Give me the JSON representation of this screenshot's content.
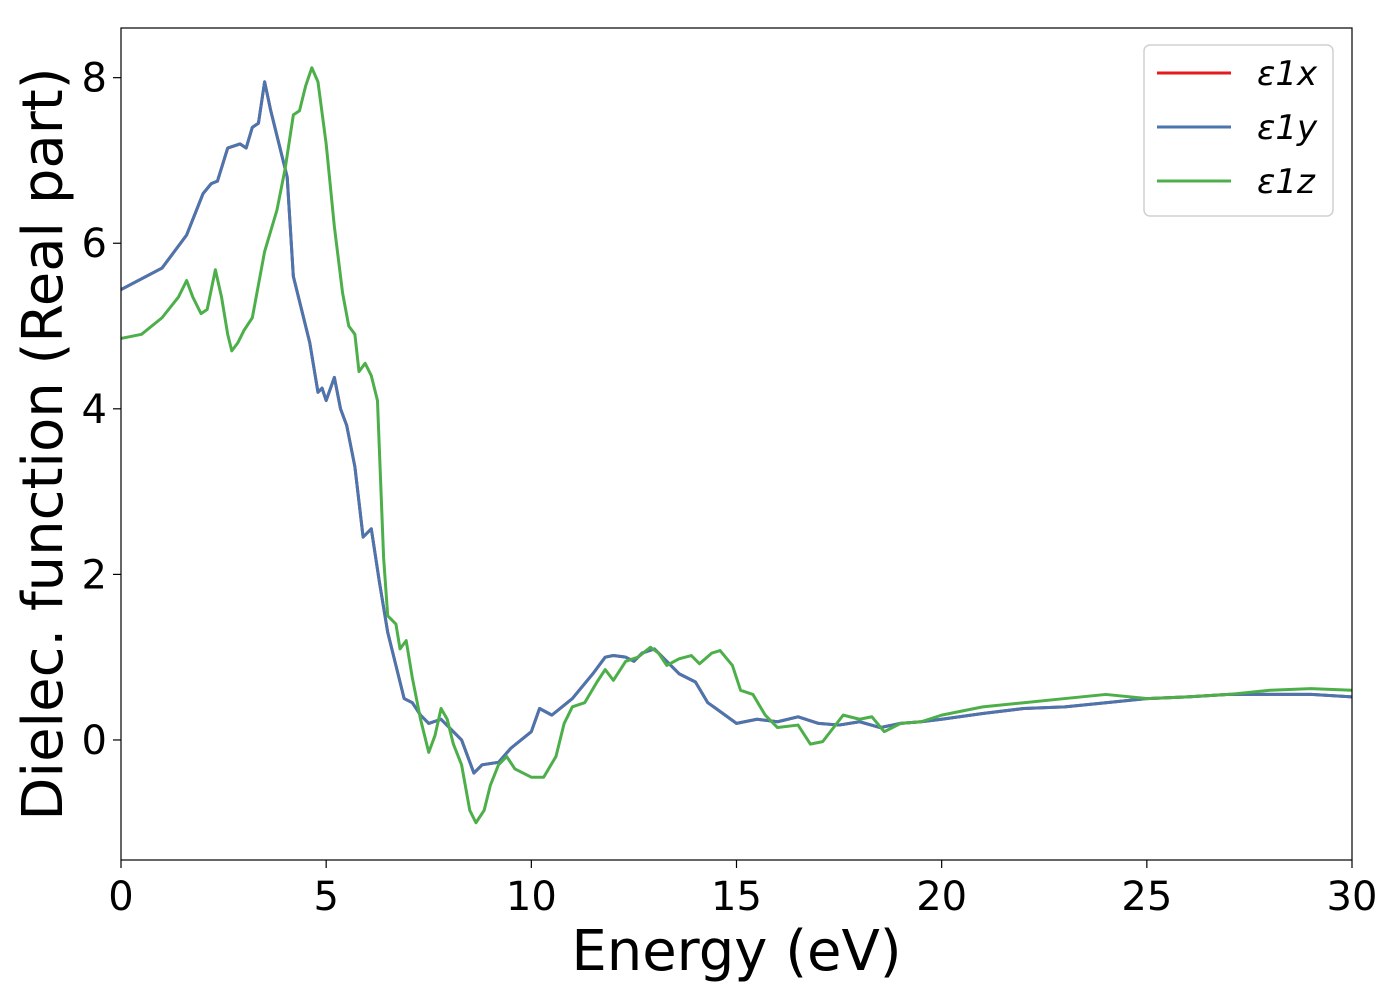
{
  "chart_data": {
    "type": "line",
    "title": "",
    "xlabel": "Energy (eV)",
    "ylabel": "Dielec. function (Real part)",
    "xlim": [
      0,
      30
    ],
    "ylim": [
      -1.45,
      8.6
    ],
    "xticks": [
      0,
      5,
      10,
      15,
      20,
      25,
      30
    ],
    "yticks": [
      0,
      2,
      4,
      6,
      8
    ],
    "grid": false,
    "legend_position": "top-right",
    "series": [
      {
        "name": "ε1x",
        "color": "#e41a1c",
        "points": [
          [
            0,
            5.44
          ],
          [
            1,
            5.7
          ],
          [
            1.6,
            6.1
          ],
          [
            2,
            6.6
          ],
          [
            2.2,
            6.72
          ],
          [
            2.35,
            6.75
          ],
          [
            2.6,
            7.15
          ],
          [
            2.9,
            7.2
          ],
          [
            3.05,
            7.15
          ],
          [
            3.2,
            7.4
          ],
          [
            3.35,
            7.45
          ],
          [
            3.5,
            7.95
          ],
          [
            3.65,
            7.6
          ],
          [
            3.8,
            7.3
          ],
          [
            4.05,
            6.8
          ],
          [
            4.2,
            5.6
          ],
          [
            4.4,
            5.2
          ],
          [
            4.6,
            4.8
          ],
          [
            4.8,
            4.2
          ],
          [
            4.9,
            4.25
          ],
          [
            5.0,
            4.1
          ],
          [
            5.2,
            4.38
          ],
          [
            5.35,
            4.0
          ],
          [
            5.5,
            3.8
          ],
          [
            5.7,
            3.3
          ],
          [
            5.9,
            2.45
          ],
          [
            6.1,
            2.55
          ],
          [
            6.3,
            1.9
          ],
          [
            6.5,
            1.3
          ],
          [
            6.7,
            0.9
          ],
          [
            6.9,
            0.5
          ],
          [
            7.1,
            0.45
          ],
          [
            7.3,
            0.3
          ],
          [
            7.5,
            0.2
          ],
          [
            7.8,
            0.25
          ],
          [
            8.0,
            0.15
          ],
          [
            8.3,
            0.0
          ],
          [
            8.6,
            -0.4
          ],
          [
            8.8,
            -0.3
          ],
          [
            9.2,
            -0.27
          ],
          [
            9.5,
            -0.1
          ],
          [
            10.0,
            0.1
          ],
          [
            10.2,
            0.38
          ],
          [
            10.5,
            0.3
          ],
          [
            11.0,
            0.5
          ],
          [
            11.5,
            0.8
          ],
          [
            11.8,
            1.0
          ],
          [
            12.0,
            1.02
          ],
          [
            12.3,
            1.0
          ],
          [
            12.5,
            0.95
          ],
          [
            12.7,
            1.05
          ],
          [
            13.0,
            1.1
          ],
          [
            13.3,
            0.95
          ],
          [
            13.6,
            0.8
          ],
          [
            14.0,
            0.7
          ],
          [
            14.3,
            0.45
          ],
          [
            14.5,
            0.38
          ],
          [
            15.0,
            0.2
          ],
          [
            15.5,
            0.25
          ],
          [
            16.0,
            0.22
          ],
          [
            16.5,
            0.28
          ],
          [
            17.0,
            0.2
          ],
          [
            17.5,
            0.18
          ],
          [
            18.0,
            0.22
          ],
          [
            18.5,
            0.15
          ],
          [
            19.0,
            0.2
          ],
          [
            19.5,
            0.22
          ],
          [
            20.0,
            0.25
          ],
          [
            21.0,
            0.32
          ],
          [
            22.0,
            0.38
          ],
          [
            23.0,
            0.4
          ],
          [
            24.0,
            0.45
          ],
          [
            25.0,
            0.5
          ],
          [
            26.0,
            0.52
          ],
          [
            27.0,
            0.55
          ],
          [
            28.0,
            0.55
          ],
          [
            29.0,
            0.55
          ],
          [
            30.0,
            0.52
          ]
        ]
      },
      {
        "name": "ε1y",
        "color": "#4a76b0",
        "points": [
          [
            0,
            5.44
          ],
          [
            1,
            5.7
          ],
          [
            1.6,
            6.1
          ],
          [
            2,
            6.6
          ],
          [
            2.2,
            6.72
          ],
          [
            2.35,
            6.75
          ],
          [
            2.6,
            7.15
          ],
          [
            2.9,
            7.2
          ],
          [
            3.05,
            7.15
          ],
          [
            3.2,
            7.4
          ],
          [
            3.35,
            7.45
          ],
          [
            3.5,
            7.95
          ],
          [
            3.65,
            7.6
          ],
          [
            3.8,
            7.3
          ],
          [
            4.05,
            6.8
          ],
          [
            4.2,
            5.6
          ],
          [
            4.4,
            5.2
          ],
          [
            4.6,
            4.8
          ],
          [
            4.8,
            4.2
          ],
          [
            4.9,
            4.25
          ],
          [
            5.0,
            4.1
          ],
          [
            5.2,
            4.38
          ],
          [
            5.35,
            4.0
          ],
          [
            5.5,
            3.8
          ],
          [
            5.7,
            3.3
          ],
          [
            5.9,
            2.45
          ],
          [
            6.1,
            2.55
          ],
          [
            6.3,
            1.9
          ],
          [
            6.5,
            1.3
          ],
          [
            6.7,
            0.9
          ],
          [
            6.9,
            0.5
          ],
          [
            7.1,
            0.45
          ],
          [
            7.3,
            0.3
          ],
          [
            7.5,
            0.2
          ],
          [
            7.8,
            0.25
          ],
          [
            8.0,
            0.15
          ],
          [
            8.3,
            0.0
          ],
          [
            8.6,
            -0.4
          ],
          [
            8.8,
            -0.3
          ],
          [
            9.2,
            -0.27
          ],
          [
            9.5,
            -0.1
          ],
          [
            10.0,
            0.1
          ],
          [
            10.2,
            0.38
          ],
          [
            10.5,
            0.3
          ],
          [
            11.0,
            0.5
          ],
          [
            11.5,
            0.8
          ],
          [
            11.8,
            1.0
          ],
          [
            12.0,
            1.02
          ],
          [
            12.3,
            1.0
          ],
          [
            12.5,
            0.95
          ],
          [
            12.7,
            1.05
          ],
          [
            13.0,
            1.1
          ],
          [
            13.3,
            0.95
          ],
          [
            13.6,
            0.8
          ],
          [
            14.0,
            0.7
          ],
          [
            14.3,
            0.45
          ],
          [
            14.5,
            0.38
          ],
          [
            15.0,
            0.2
          ],
          [
            15.5,
            0.25
          ],
          [
            16.0,
            0.22
          ],
          [
            16.5,
            0.28
          ],
          [
            17.0,
            0.2
          ],
          [
            17.5,
            0.18
          ],
          [
            18.0,
            0.22
          ],
          [
            18.5,
            0.15
          ],
          [
            19.0,
            0.2
          ],
          [
            19.5,
            0.22
          ],
          [
            20.0,
            0.25
          ],
          [
            21.0,
            0.32
          ],
          [
            22.0,
            0.38
          ],
          [
            23.0,
            0.4
          ],
          [
            24.0,
            0.45
          ],
          [
            25.0,
            0.5
          ],
          [
            26.0,
            0.52
          ],
          [
            27.0,
            0.55
          ],
          [
            28.0,
            0.55
          ],
          [
            29.0,
            0.55
          ],
          [
            30.0,
            0.52
          ]
        ]
      },
      {
        "name": "ε1z",
        "color": "#4daf4a",
        "points": [
          [
            0,
            4.85
          ],
          [
            0.5,
            4.9
          ],
          [
            1.0,
            5.1
          ],
          [
            1.4,
            5.35
          ],
          [
            1.6,
            5.55
          ],
          [
            1.75,
            5.35
          ],
          [
            1.95,
            5.15
          ],
          [
            2.1,
            5.2
          ],
          [
            2.3,
            5.68
          ],
          [
            2.45,
            5.35
          ],
          [
            2.6,
            4.9
          ],
          [
            2.7,
            4.7
          ],
          [
            2.85,
            4.8
          ],
          [
            3.0,
            4.95
          ],
          [
            3.2,
            5.1
          ],
          [
            3.5,
            5.9
          ],
          [
            3.8,
            6.4
          ],
          [
            4.0,
            6.9
          ],
          [
            4.2,
            7.55
          ],
          [
            4.35,
            7.6
          ],
          [
            4.5,
            7.9
          ],
          [
            4.65,
            8.12
          ],
          [
            4.8,
            7.95
          ],
          [
            5.0,
            7.2
          ],
          [
            5.2,
            6.2
          ],
          [
            5.4,
            5.4
          ],
          [
            5.55,
            5.0
          ],
          [
            5.7,
            4.9
          ],
          [
            5.8,
            4.45
          ],
          [
            5.95,
            4.55
          ],
          [
            6.1,
            4.4
          ],
          [
            6.25,
            4.1
          ],
          [
            6.4,
            2.2
          ],
          [
            6.5,
            1.5
          ],
          [
            6.7,
            1.4
          ],
          [
            6.8,
            1.1
          ],
          [
            6.95,
            1.2
          ],
          [
            7.1,
            0.75
          ],
          [
            7.3,
            0.25
          ],
          [
            7.5,
            -0.15
          ],
          [
            7.65,
            0.05
          ],
          [
            7.8,
            0.38
          ],
          [
            7.95,
            0.25
          ],
          [
            8.1,
            -0.05
          ],
          [
            8.3,
            -0.3
          ],
          [
            8.5,
            -0.85
          ],
          [
            8.65,
            -1.0
          ],
          [
            8.85,
            -0.85
          ],
          [
            9.0,
            -0.55
          ],
          [
            9.2,
            -0.3
          ],
          [
            9.4,
            -0.2
          ],
          [
            9.6,
            -0.35
          ],
          [
            10.0,
            -0.45
          ],
          [
            10.3,
            -0.45
          ],
          [
            10.6,
            -0.2
          ],
          [
            10.8,
            0.2
          ],
          [
            11.0,
            0.4
          ],
          [
            11.3,
            0.45
          ],
          [
            11.6,
            0.7
          ],
          [
            11.8,
            0.85
          ],
          [
            12.0,
            0.72
          ],
          [
            12.3,
            0.95
          ],
          [
            12.6,
            1.0
          ],
          [
            12.9,
            1.12
          ],
          [
            13.1,
            1.05
          ],
          [
            13.3,
            0.9
          ],
          [
            13.6,
            0.98
          ],
          [
            13.9,
            1.02
          ],
          [
            14.1,
            0.92
          ],
          [
            14.4,
            1.05
          ],
          [
            14.6,
            1.08
          ],
          [
            14.9,
            0.9
          ],
          [
            15.1,
            0.6
          ],
          [
            15.4,
            0.55
          ],
          [
            15.7,
            0.3
          ],
          [
            16.0,
            0.15
          ],
          [
            16.5,
            0.18
          ],
          [
            16.8,
            -0.05
          ],
          [
            17.1,
            -0.02
          ],
          [
            17.6,
            0.3
          ],
          [
            18.0,
            0.25
          ],
          [
            18.3,
            0.28
          ],
          [
            18.6,
            0.1
          ],
          [
            19.0,
            0.2
          ],
          [
            19.5,
            0.22
          ],
          [
            20.0,
            0.3
          ],
          [
            20.5,
            0.35
          ],
          [
            21.0,
            0.4
          ],
          [
            22.0,
            0.45
          ],
          [
            23.0,
            0.5
          ],
          [
            24.0,
            0.55
          ],
          [
            25.0,
            0.5
          ],
          [
            26.0,
            0.52
          ],
          [
            27.0,
            0.55
          ],
          [
            28.0,
            0.6
          ],
          [
            29.0,
            0.62
          ],
          [
            30.0,
            0.6
          ]
        ]
      }
    ]
  }
}
